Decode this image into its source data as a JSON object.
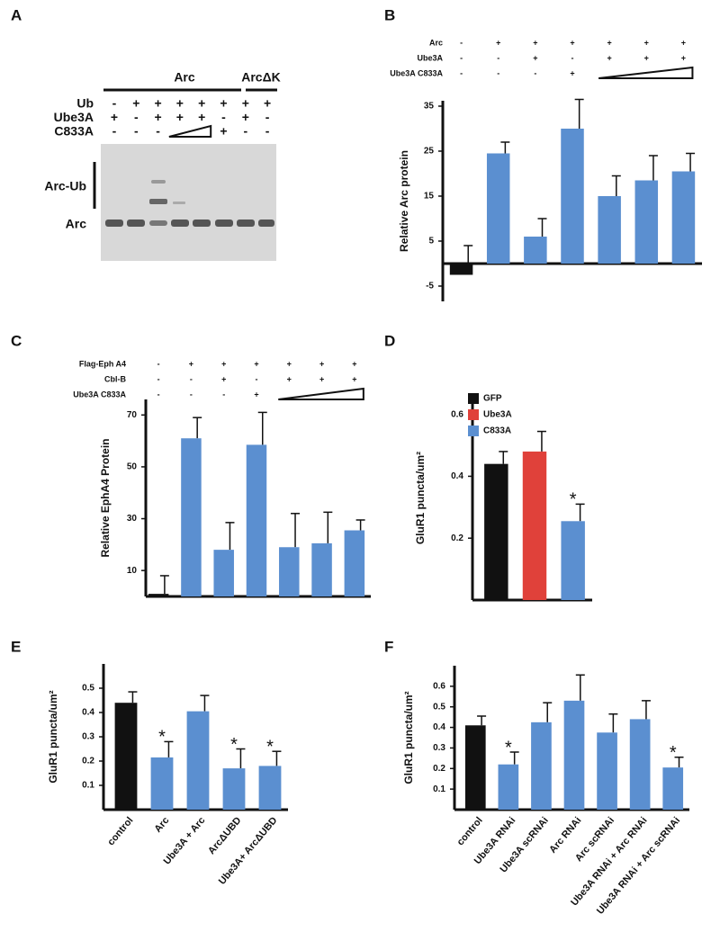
{
  "gel": {
    "label": "A",
    "headers": [
      "Arc",
      "ArcΔK"
    ],
    "band_labels": [
      "Arc-Ub",
      "Arc"
    ],
    "conditions": [
      {
        "name": "Ub",
        "signs": [
          "-",
          "+",
          "+",
          "+",
          "+",
          "+",
          "+",
          "+"
        ]
      },
      {
        "name": "Ube3A",
        "signs": [
          "+",
          "-",
          "+",
          "+",
          "+",
          "-",
          "+",
          "-"
        ]
      },
      {
        "name": "C833A",
        "signs": [
          "-",
          "-",
          "-",
          null,
          null,
          "+",
          "-",
          "-"
        ]
      }
    ]
  },
  "chart_data": [
    {
      "type": "bar",
      "label": "B",
      "ylabel": "Relative Arc protein",
      "values": [
        -2.5,
        24.5,
        6,
        30,
        15,
        18.5,
        20.5
      ],
      "errors": [
        6.5,
        2.5,
        4,
        6.5,
        4.5,
        5.5,
        4
      ],
      "colors": [
        "#111111",
        "#5b8fd0",
        "#5b8fd0",
        "#5b8fd0",
        "#5b8fd0",
        "#5b8fd0",
        "#5b8fd0"
      ],
      "ylim": [
        -8.4,
        36.2
      ],
      "yticks": [
        -5,
        5,
        15,
        25,
        35
      ],
      "conditions": [
        {
          "name": "Arc",
          "signs": [
            "-",
            "+",
            "+",
            "+",
            "+",
            "+",
            "+"
          ]
        },
        {
          "name": "Ube3A",
          "signs": [
            "-",
            "-",
            "+",
            "-",
            "+",
            "+",
            "+"
          ]
        },
        {
          "name": "Ube3A C833A",
          "signs": [
            "-",
            "-",
            "-",
            "+",
            null,
            null,
            null
          ]
        }
      ]
    },
    {
      "type": "bar",
      "label": "C",
      "ylabel": "Relative EphA4 Protein",
      "values": [
        1,
        61,
        18,
        58.5,
        19,
        20.5,
        25.5
      ],
      "errors": [
        7,
        8,
        10.5,
        12.5,
        13,
        12,
        4
      ],
      "colors": [
        "#111111",
        "#5b8fd0",
        "#5b8fd0",
        "#5b8fd0",
        "#5b8fd0",
        "#5b8fd0",
        "#5b8fd0"
      ],
      "ylim": [
        0,
        76
      ],
      "yticks": [
        10,
        30,
        50,
        70
      ],
      "conditions": [
        {
          "name": "Flag-Eph A4",
          "signs": [
            "-",
            "+",
            "+",
            "+",
            "+",
            "+",
            "+"
          ]
        },
        {
          "name": "Cbl-B",
          "signs": [
            "-",
            "-",
            "+",
            "-",
            "+",
            "+",
            "+"
          ]
        },
        {
          "name": "Ube3A C833A",
          "signs": [
            "-",
            "-",
            "-",
            "+",
            null,
            null,
            null
          ]
        }
      ]
    },
    {
      "type": "bar",
      "label": "D",
      "ylabel": "GluR1 puncta/um²",
      "categories": [
        "GFP",
        "Ube3A",
        "C833A"
      ],
      "legend": true,
      "values": [
        0.44,
        0.48,
        0.255
      ],
      "errors": [
        0.04,
        0.065,
        0.055
      ],
      "colors": [
        "#111111",
        "#e0413a",
        "#5b8fd0"
      ],
      "annotations": [
        null,
        null,
        "*"
      ],
      "ylim": [
        0,
        0.66
      ],
      "yticks": [
        0.2,
        0.4,
        0.6
      ]
    },
    {
      "type": "bar",
      "label": "E",
      "ylabel": "GluR1 puncta/um²",
      "categories": [
        "control",
        "Arc",
        "Ube3A + Arc",
        "ArcΔUBD",
        "Ube3A+ ArcΔUBD"
      ],
      "values": [
        0.44,
        0.215,
        0.405,
        0.17,
        0.18
      ],
      "errors": [
        0.045,
        0.065,
        0.065,
        0.08,
        0.06
      ],
      "colors": [
        "#111111",
        "#5b8fd0",
        "#5b8fd0",
        "#5b8fd0",
        "#5b8fd0"
      ],
      "annotations": [
        null,
        "*",
        null,
        "*",
        "*"
      ],
      "ylim": [
        0,
        0.6
      ],
      "yticks": [
        0.1,
        0.2,
        0.3,
        0.4,
        0.5
      ]
    },
    {
      "type": "bar",
      "label": "F",
      "ylabel": "GluR1 puncta/um²",
      "categories": [
        "control",
        "Ube3A RNAi",
        "Ube3A scRNAi",
        "Arc RNAi",
        "Arc scRNAi",
        "Ube3A RNAi + Arc RNAi",
        "Ube3A RNAi + Arc scRNAi"
      ],
      "values": [
        0.41,
        0.22,
        0.425,
        0.53,
        0.375,
        0.44,
        0.205
      ],
      "errors": [
        0.045,
        0.06,
        0.095,
        0.125,
        0.09,
        0.09,
        0.05
      ],
      "colors": [
        "#111111",
        "#5b8fd0",
        "#5b8fd0",
        "#5b8fd0",
        "#5b8fd0",
        "#5b8fd0",
        "#5b8fd0"
      ],
      "annotations": [
        null,
        "*",
        null,
        null,
        null,
        null,
        "*"
      ],
      "ylim": [
        0,
        0.7
      ],
      "yticks": [
        0.1,
        0.2,
        0.3,
        0.4,
        0.5,
        0.6
      ]
    }
  ]
}
